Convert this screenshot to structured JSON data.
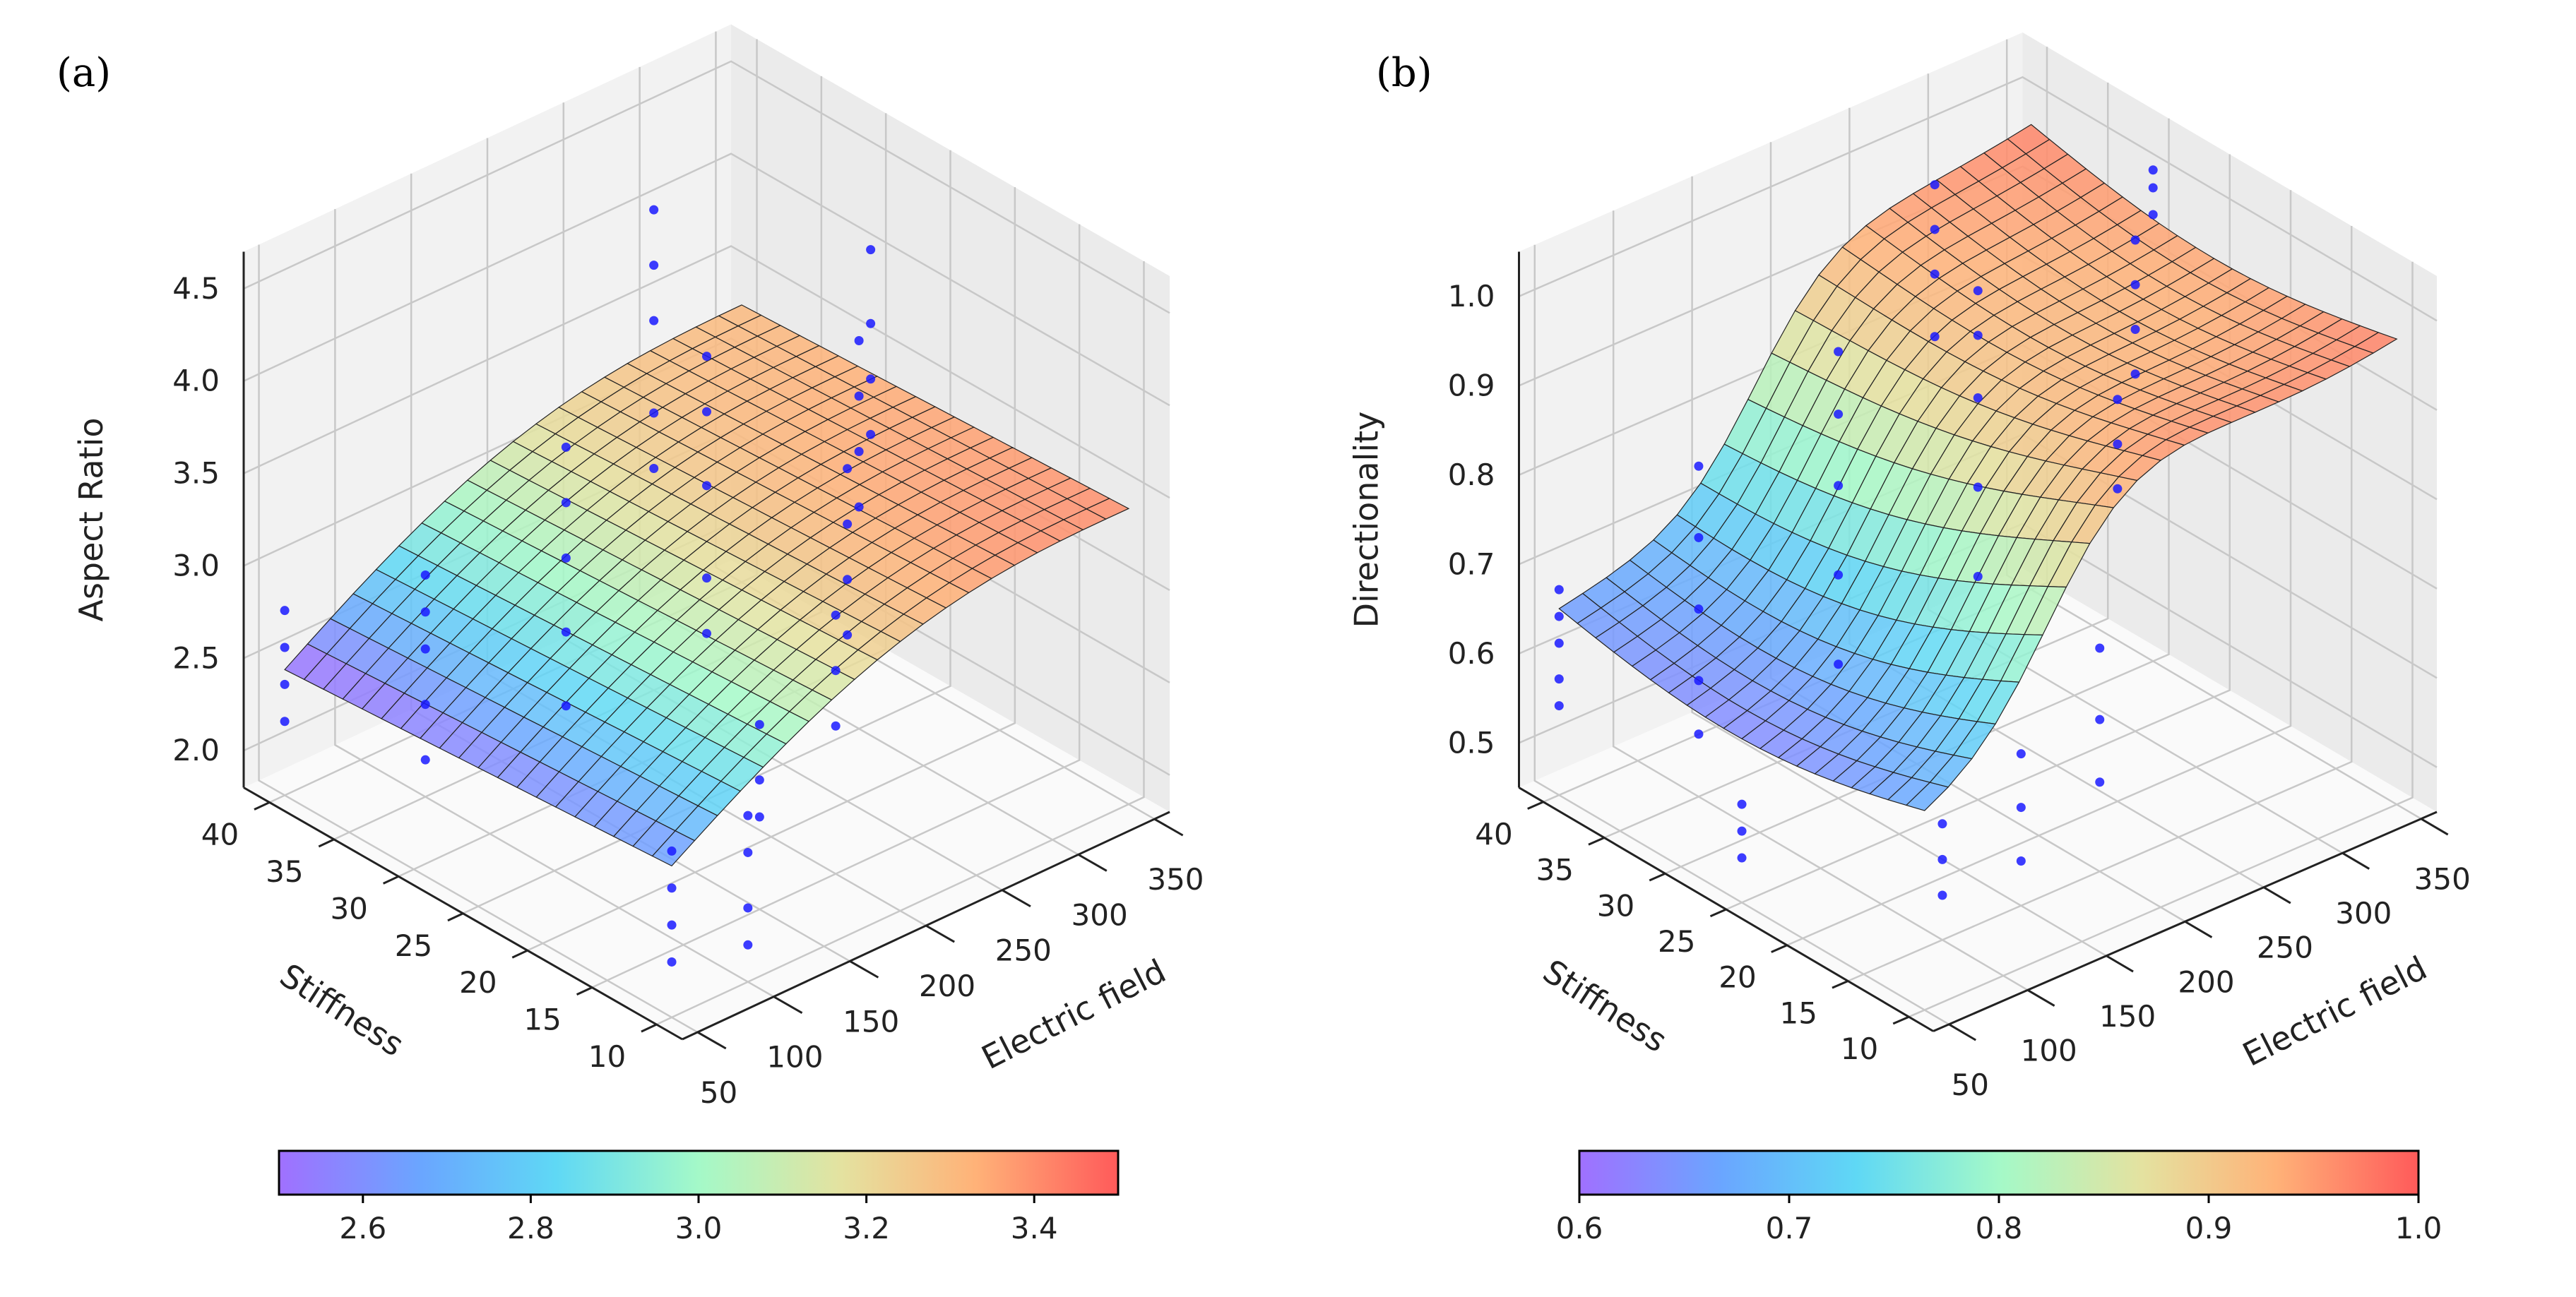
{
  "chart_data": [
    {
      "panel_label": "(a)",
      "type": "surface3d",
      "xlabel": "Electric field",
      "ylabel": "Stiffness",
      "zlabel": "Aspect Ratio",
      "xlim": [
        40,
        360
      ],
      "ylim": [
        8,
        42
      ],
      "zlim": [
        1.8,
        4.7
      ],
      "x_ticks": [
        "50",
        "100",
        "150",
        "200",
        "250",
        "300",
        "350"
      ],
      "y_ticks": [
        "10",
        "15",
        "20",
        "25",
        "30",
        "35",
        "40"
      ],
      "z_ticks": [
        "2.0",
        "2.5",
        "3.0",
        "3.5",
        "4.0",
        "4.5"
      ],
      "grid": true,
      "colormap": "rainbow",
      "colorbar": {
        "range": [
          2.5,
          3.5
        ],
        "ticks": [
          "2.6",
          "2.8",
          "3.0",
          "3.2",
          "3.4"
        ]
      },
      "surface": {
        "x": [
          50,
          350
        ],
        "y": [
          10,
          40
        ],
        "corners": {
          "x50_y10": 2.62,
          "x50_y40": 2.48,
          "x350_y10": 3.55,
          "x350_y40": 3.45
        }
      },
      "scatter": [
        {
          "x": 50,
          "y": 40,
          "z": [
            2.2,
            2.4,
            2.6,
            2.8
          ]
        },
        {
          "x": 50,
          "y": 10,
          "z": [
            2.1,
            2.3,
            2.5,
            2.7
          ]
        },
        {
          "x": 100,
          "y": 35,
          "z": [
            2.0,
            2.3,
            2.6,
            2.8,
            3.0
          ]
        },
        {
          "x": 100,
          "y": 10,
          "z": [
            2.0,
            2.2,
            2.5,
            2.7
          ]
        },
        {
          "x": 150,
          "y": 30,
          "z": [
            2.3,
            2.7,
            3.1,
            3.4,
            3.7
          ]
        },
        {
          "x": 150,
          "y": 15,
          "z": [
            2.3,
            2.5,
            2.8
          ]
        },
        {
          "x": 200,
          "y": 25,
          "z": [
            2.7,
            3.0,
            3.5,
            3.9,
            4.2
          ]
        },
        {
          "x": 200,
          "y": 15,
          "z": [
            2.6,
            2.9,
            3.2
          ]
        },
        {
          "x": 250,
          "y": 35,
          "z": [
            3.0,
            3.3,
            3.8,
            4.1,
            4.4
          ]
        },
        {
          "x": 250,
          "y": 20,
          "z": [
            2.7,
            3.0,
            3.3,
            3.6
          ]
        },
        {
          "x": 300,
          "y": 25,
          "z": [
            3.0,
            3.3,
            3.6,
            3.9
          ]
        },
        {
          "x": 350,
          "y": 30,
          "z": [
            3.0,
            3.3,
            3.6,
            4.0
          ]
        }
      ]
    },
    {
      "panel_label": "(b)",
      "type": "surface3d",
      "xlabel": "Electric field",
      "ylabel": "Stiffness",
      "zlabel": "Directionality",
      "xlim": [
        40,
        360
      ],
      "ylim": [
        8,
        42
      ],
      "zlim": [
        0.45,
        1.05
      ],
      "x_ticks": [
        "50",
        "100",
        "150",
        "200",
        "250",
        "300",
        "350"
      ],
      "y_ticks": [
        "10",
        "15",
        "20",
        "25",
        "30",
        "35",
        "40"
      ],
      "z_ticks": [
        "0.5",
        "0.6",
        "0.7",
        "0.8",
        "0.9",
        "1.0"
      ],
      "grid": true,
      "colormap": "rainbow",
      "colorbar": {
        "range": [
          0.6,
          1.0
        ],
        "ticks": [
          "0.6",
          "0.7",
          "0.8",
          "0.9",
          "1.0"
        ]
      },
      "surface": {
        "x": [
          50,
          350
        ],
        "y": [
          10,
          40
        ],
        "shape": "logistic rise with electric field",
        "low_plateau": 0.64,
        "high_plateau": 0.98
      },
      "scatter": [
        {
          "x": 50,
          "y": 40,
          "z": [
            0.55,
            0.58,
            0.62,
            0.65,
            0.68
          ]
        },
        {
          "x": 50,
          "y": 25,
          "z": [
            0.5,
            0.53,
            0.56
          ]
        },
        {
          "x": 100,
          "y": 35,
          "z": [
            0.52,
            0.58,
            0.66,
            0.74,
            0.82
          ]
        },
        {
          "x": 100,
          "y": 15,
          "z": [
            0.5,
            0.54,
            0.58
          ]
        },
        {
          "x": 150,
          "y": 30,
          "z": [
            0.6,
            0.7,
            0.8,
            0.88,
            0.95
          ]
        },
        {
          "x": 150,
          "y": 15,
          "z": [
            0.5,
            0.56,
            0.62
          ]
        },
        {
          "x": 200,
          "y": 25,
          "z": [
            0.7,
            0.8,
            0.9,
            0.97,
            1.02
          ]
        },
        {
          "x": 200,
          "y": 15,
          "z": [
            0.55,
            0.62,
            0.7
          ]
        },
        {
          "x": 250,
          "y": 35,
          "z": [
            0.85,
            0.92,
            0.97,
            1.02
          ]
        },
        {
          "x": 250,
          "y": 20,
          "z": [
            0.8,
            0.85,
            0.9
          ]
        },
        {
          "x": 300,
          "y": 25,
          "z": [
            0.85,
            0.9,
            0.95,
            1.0
          ]
        },
        {
          "x": 350,
          "y": 30,
          "z": [
            0.95,
            0.98,
            1.0
          ]
        }
      ]
    }
  ]
}
